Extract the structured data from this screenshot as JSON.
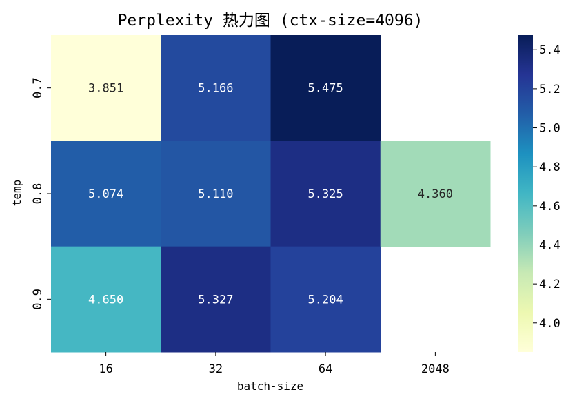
{
  "chart_data": {
    "type": "heatmap",
    "title": "Perplexity 热力图 (ctx-size=4096)",
    "xlabel": "batch-size",
    "ylabel": "temp",
    "x_categories": [
      "16",
      "32",
      "64",
      "2048"
    ],
    "y_categories": [
      "0.7",
      "0.8",
      "0.9"
    ],
    "values": [
      [
        3.851,
        5.166,
        5.475,
        null
      ],
      [
        5.074,
        5.11,
        5.325,
        4.36
      ],
      [
        4.65,
        5.327,
        5.204,
        null
      ]
    ],
    "value_labels": [
      [
        "3.851",
        "5.166",
        "5.475",
        ""
      ],
      [
        "5.074",
        "5.110",
        "5.325",
        "4.360"
      ],
      [
        "4.650",
        "5.327",
        "5.204",
        ""
      ]
    ],
    "colormap": "YlGnBu",
    "vmin": 3.851,
    "vmax": 5.475,
    "colorbar": {
      "ticks": [
        4.0,
        4.2,
        4.4,
        4.6,
        4.8,
        5.0,
        5.2,
        5.4
      ],
      "tick_labels": [
        "4.0",
        "4.2",
        "4.4",
        "4.6",
        "4.8",
        "5.0",
        "5.2",
        "5.4"
      ]
    },
    "grid": false,
    "legend": "colorbar-right"
  }
}
